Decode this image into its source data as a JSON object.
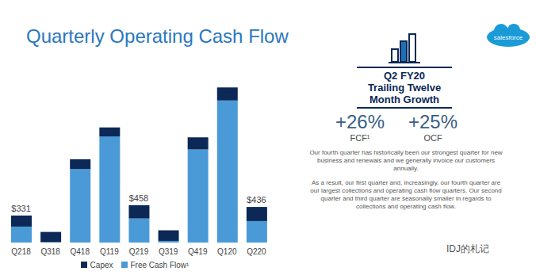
{
  "chart_data": {
    "type": "bar",
    "title": "Quarterly Operating Cash Flow",
    "categories": [
      "Q218",
      "Q318",
      "Q418",
      "Q119",
      "Q219",
      "Q319",
      "Q419",
      "Q120",
      "Q220"
    ],
    "series": [
      {
        "name": "Free Cash Flow¹",
        "color": "#4a9ad8",
        "values": [
          195,
          5,
          900,
          1300,
          295,
          20,
          1140,
          1740,
          263
        ]
      },
      {
        "name": "Capex",
        "color": "#0b2856",
        "values": [
          136,
          125,
          120,
          110,
          163,
          130,
          150,
          160,
          173
        ]
      }
    ],
    "stacked": true,
    "ylim": [
      0,
      2000
    ],
    "tick_labels": "x",
    "legend": "bottom",
    "annotations": [
      {
        "category": "Q218",
        "value": 331,
        "label": "$331"
      },
      {
        "category": "Q219",
        "value": 458,
        "label": "$458"
      },
      {
        "category": "Q220",
        "value": 436,
        "label": "$436"
      }
    ]
  },
  "side_panel": {
    "logo": "salesforce",
    "headline": [
      "Q2 FY20",
      "Trailing Twelve",
      "Month Growth"
    ],
    "metrics": [
      {
        "value": 26,
        "label": "+26%",
        "name": "FCF¹"
      },
      {
        "value": 25,
        "label": "+25%",
        "name": "OCF"
      }
    ],
    "paragraphs": [
      "Our fourth quarter has historically been our strongest quarter for new business and renewals and we generally invoice our customers annually.",
      "As a result, our first quarter and, increasingly, our fourth quarter are our largest collections and operating cash flow quarters. Our second quarter and third quarter are seasonally smaller in regards to collections and operating cash flow."
    ],
    "watermark": "IDJ的札记"
  }
}
